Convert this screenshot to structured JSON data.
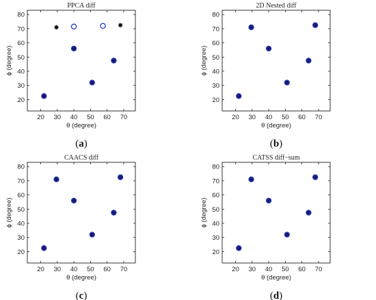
{
  "colors": {
    "fill": "#1a1a6e",
    "ring": "#2a3fbf",
    "star": "#000000"
  },
  "chart_data": [
    {
      "type": "scatter",
      "title": "PPCA diff",
      "xlabel": "θ (degree)",
      "ylabel": "ϕ (degree)",
      "xlim": [
        12,
        77
      ],
      "ylim": [
        12,
        83
      ],
      "xticks": [
        20,
        30,
        40,
        50,
        60,
        70
      ],
      "yticks": [
        20,
        30,
        40,
        50,
        60,
        70,
        80
      ],
      "caption": {
        "open": "(",
        "letter": "a",
        "close": ")"
      },
      "series": [
        {
          "marker": "filled-circle",
          "points": [
            [
              22,
              22.5
            ],
            [
              40,
              56
            ],
            [
              51,
              32
            ],
            [
              64,
              47.5
            ]
          ]
        },
        {
          "marker": "open-circle",
          "points": [
            [
              40,
              71.5
            ],
            [
              57.5,
              72
            ]
          ]
        },
        {
          "marker": "star",
          "points": [
            [
              29.5,
              71
            ],
            [
              68,
              72.5
            ]
          ]
        }
      ]
    },
    {
      "type": "scatter",
      "title": "2D Nested diff",
      "xlabel": "θ (degree)",
      "ylabel": "ϕ (degree)",
      "xlim": [
        12,
        77
      ],
      "ylim": [
        12,
        83
      ],
      "xticks": [
        20,
        30,
        40,
        50,
        60,
        70
      ],
      "yticks": [
        20,
        30,
        40,
        50,
        60,
        70,
        80
      ],
      "caption": {
        "open": "(",
        "letter": "b",
        "close": ")"
      },
      "series": [
        {
          "marker": "filled-circle",
          "points": [
            [
              22,
              22.5
            ],
            [
              29.5,
              71
            ],
            [
              40,
              56
            ],
            [
              51,
              32
            ],
            [
              64,
              47.5
            ],
            [
              68,
              72.5
            ]
          ]
        }
      ]
    },
    {
      "type": "scatter",
      "title": "CAACS diff",
      "xlabel": "θ (degree)",
      "ylabel": "ϕ (degree)",
      "xlim": [
        12,
        77
      ],
      "ylim": [
        12,
        83
      ],
      "xticks": [
        20,
        30,
        40,
        50,
        60,
        70
      ],
      "yticks": [
        20,
        30,
        40,
        50,
        60,
        70,
        80
      ],
      "caption": {
        "open": "(",
        "letter": "c",
        "close": ")"
      },
      "series": [
        {
          "marker": "filled-circle",
          "points": [
            [
              22,
              22.5
            ],
            [
              29.5,
              71
            ],
            [
              40,
              56
            ],
            [
              51,
              32
            ],
            [
              64,
              47.5
            ],
            [
              68,
              72.5
            ]
          ]
        }
      ]
    },
    {
      "type": "scatter",
      "title": "CATSS diff−sum",
      "xlabel": "θ (degree)",
      "ylabel": "ϕ (degree)",
      "xlim": [
        12,
        77
      ],
      "ylim": [
        12,
        83
      ],
      "xticks": [
        20,
        30,
        40,
        50,
        60,
        70
      ],
      "yticks": [
        20,
        30,
        40,
        50,
        60,
        70,
        80
      ],
      "caption": {
        "open": "(",
        "letter": "d",
        "close": ")"
      },
      "series": [
        {
          "marker": "filled-circle",
          "points": [
            [
              22,
              22.5
            ],
            [
              29.5,
              71
            ],
            [
              40,
              56
            ],
            [
              51,
              32
            ],
            [
              64,
              47.5
            ],
            [
              68,
              72.5
            ]
          ]
        }
      ]
    }
  ]
}
